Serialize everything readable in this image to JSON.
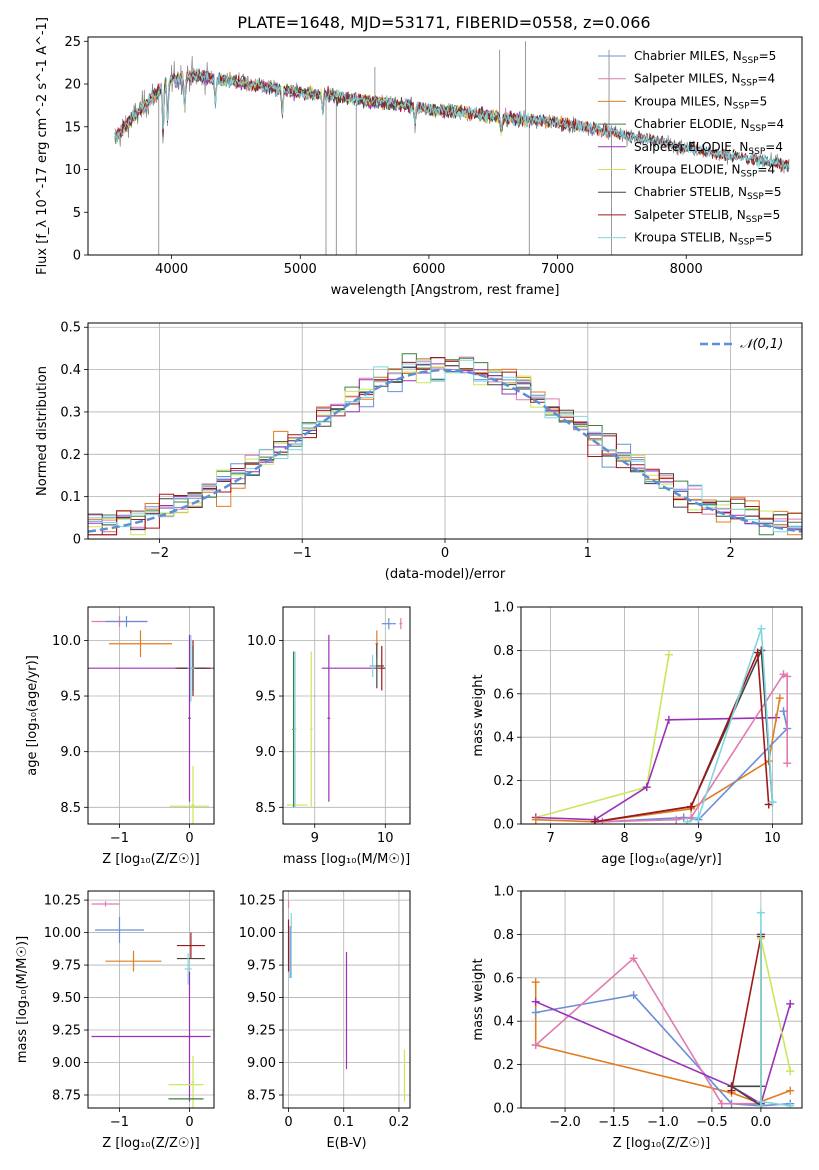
{
  "figure_title": "PLATE=1648, MJD=53171, FIBERID=0558, z=0.066",
  "chart_data": [
    {
      "id": "spectrum",
      "type": "line",
      "title": "PLATE=1648, MJD=53171, FIBERID=0558, z=0.066",
      "xlabel": "wavelength [Angstrom, rest frame]",
      "ylabel": "Flux [f_λ 10^-17 erg cm^-2 s^-1 A^-1]",
      "xlim": [
        3350,
        8900
      ],
      "ylim": [
        0,
        25.5
      ],
      "xticks": [
        4000,
        5000,
        6000,
        7000,
        8000
      ],
      "yticks": [
        0,
        5,
        10,
        15,
        20,
        25
      ],
      "grid": false,
      "legend_position": "top-right",
      "continuum_x": [
        3550,
        3700,
        3850,
        3950,
        4000,
        4100,
        4200,
        4400,
        4600,
        4800,
        5000,
        5200,
        5400,
        5600,
        5800,
        6000,
        6200,
        6400,
        6600,
        6800,
        7000,
        7200,
        7400,
        7600,
        7800,
        8000,
        8200,
        8400,
        8600,
        8800
      ],
      "continuum_y": [
        13.5,
        16.0,
        18.5,
        20.0,
        20.5,
        20.8,
        21.0,
        20.5,
        20.0,
        19.5,
        19.0,
        18.7,
        18.3,
        17.9,
        17.5,
        17.1,
        16.8,
        16.4,
        16.0,
        15.8,
        15.5,
        15.0,
        14.5,
        13.8,
        13.2,
        12.6,
        12.0,
        11.5,
        11.0,
        10.6
      ],
      "series": [
        {
          "name": "Chabrier MILES",
          "nssp": "5",
          "color": "#6a8fd8",
          "xmax": 7450
        },
        {
          "name": "Salpeter MILES",
          "nssp": "4",
          "color": "#e07ab0",
          "xmax": 7450
        },
        {
          "name": "Kroupa MILES",
          "nssp": "5",
          "color": "#e07d22",
          "xmax": 7450
        },
        {
          "name": "Chabrier ELODIE",
          "nssp": "4",
          "color": "#3f7f3f",
          "xmax": 6800
        },
        {
          "name": "Salpeter ELODIE",
          "nssp": "4",
          "color": "#9b30b8",
          "xmax": 6800
        },
        {
          "name": "Kroupa ELODIE",
          "nssp": "4",
          "color": "#c7e85a",
          "xmax": 6800
        },
        {
          "name": "Chabrier STELIB",
          "nssp": "5",
          "color": "#444444",
          "xmax": 8800
        },
        {
          "name": "Salpeter STELIB",
          "nssp": "5",
          "color": "#a01818",
          "xmax": 8800
        },
        {
          "name": "Kroupa STELIB",
          "nssp": "5",
          "color": "#7fd6e0",
          "xmax": 8800
        }
      ],
      "data_color": "#808080"
    },
    {
      "id": "residuals",
      "type": "histogram",
      "xlabel": "(data-model)/error",
      "ylabel": "Normed distribution",
      "xlim": [
        -2.5,
        2.5
      ],
      "ylim": [
        0,
        0.51
      ],
      "xticks": [
        -2,
        -1,
        0,
        1,
        2
      ],
      "yticks": [
        0.0,
        0.1,
        0.2,
        0.3,
        0.4,
        0.5
      ],
      "grid": true,
      "bin_width": 0.1,
      "legend_position": "top-right",
      "reference_label": "𝒩(0,1)",
      "reference_color": "#5b8fd6"
    },
    {
      "id": "age_vs_Z",
      "type": "scatter",
      "xlabel": "Z [log₁₀(Z/Z☉)]",
      "ylabel": "age  [log₁₀(age/yr)]",
      "xlim": [
        -1.45,
        0.35
      ],
      "ylim": [
        8.35,
        10.3
      ],
      "xticks": [
        -1,
        0
      ],
      "yticks": [
        8.5,
        9.0,
        9.5,
        10.0
      ],
      "grid": true,
      "points": [
        {
          "x": -1.0,
          "y": 10.17,
          "xerr": 0.4,
          "yerr": 0.05,
          "color": "#e07ab0"
        },
        {
          "x": -0.9,
          "y": 10.17,
          "xerr": 0.3,
          "yerr": 0.05,
          "color": "#6a8fd8"
        },
        {
          "x": -0.7,
          "y": 9.97,
          "xerr": 0.45,
          "yerr": 0.12,
          "color": "#e07d22"
        },
        {
          "x": -0.9,
          "y": 9.75,
          "xerr": 1.4,
          "yerr": 0.0,
          "color": "#9b30b8"
        },
        {
          "x": 0.05,
          "y": 9.75,
          "xerr": 0.25,
          "yerr": 0.25,
          "color": "#a01818"
        },
        {
          "x": 0.05,
          "y": 9.75,
          "xerr": 0.2,
          "yerr": 0.2,
          "color": "#444444"
        },
        {
          "x": 0.02,
          "y": 9.75,
          "xerr": 0.05,
          "yerr": 0.3,
          "color": "#7fd6e0"
        },
        {
          "x": 0.0,
          "y": 9.3,
          "xerr": 0.02,
          "yerr": 0.75,
          "color": "#9b30b8"
        },
        {
          "x": 0.0,
          "y": 8.51,
          "xerr": 0.28,
          "yerr": 0.0,
          "color": "#c7e85a"
        },
        {
          "x": 0.05,
          "y": 8.52,
          "xerr": 0.02,
          "yerr": 0.35,
          "color": "#c7e85a"
        }
      ]
    },
    {
      "id": "age_vs_mass",
      "type": "scatter",
      "xlabel": "mass [log₁₀(M/M☉)]",
      "ylabel": "",
      "xlim": [
        8.55,
        10.35
      ],
      "ylim": [
        8.35,
        10.3
      ],
      "xticks": [
        9,
        10
      ],
      "yticks": [
        8.5,
        9.0,
        9.5,
        10.0
      ],
      "grid": true,
      "points": [
        {
          "x": 10.05,
          "y": 10.15,
          "xerr": 0.1,
          "yerr": 0.05,
          "color": "#6a8fd8"
        },
        {
          "x": 10.22,
          "y": 10.15,
          "xerr": 0.02,
          "yerr": 0.05,
          "color": "#e07ab0"
        },
        {
          "x": 9.88,
          "y": 9.97,
          "xerr": 0.02,
          "yerr": 0.12,
          "color": "#e07d22"
        },
        {
          "x": 9.5,
          "y": 9.75,
          "xerr": 0.4,
          "yerr": 0.0,
          "color": "#9b30b8"
        },
        {
          "x": 9.88,
          "y": 9.77,
          "xerr": 0.1,
          "yerr": 0.2,
          "color": "#444444"
        },
        {
          "x": 9.95,
          "y": 9.75,
          "xerr": 0.05,
          "yerr": 0.2,
          "color": "#a01818"
        },
        {
          "x": 9.82,
          "y": 9.77,
          "xerr": 0.05,
          "yerr": 0.1,
          "color": "#7fd6e0"
        },
        {
          "x": 9.2,
          "y": 9.3,
          "xerr": 0.02,
          "yerr": 0.75,
          "color": "#9b30b8"
        },
        {
          "x": 8.75,
          "y": 8.52,
          "xerr": 0.15,
          "yerr": 0.0,
          "color": "#c7e85a"
        },
        {
          "x": 8.7,
          "y": 9.2,
          "xerr": 0.02,
          "yerr": 0.7,
          "color": "#3f7f3f"
        },
        {
          "x": 8.72,
          "y": 9.2,
          "xerr": 0.02,
          "yerr": 0.7,
          "color": "#7fd6e0"
        },
        {
          "x": 8.95,
          "y": 9.2,
          "xerr": 0.02,
          "yerr": 0.7,
          "color": "#c7e85a"
        }
      ]
    },
    {
      "id": "massweight_vs_age",
      "type": "line",
      "xlabel": "age  [log₁₀(age/yr)]",
      "ylabel": "mass weight",
      "xlim": [
        6.6,
        10.4
      ],
      "ylim": [
        0,
        1.0
      ],
      "xticks": [
        7,
        8,
        9,
        10
      ],
      "yticks": [
        0.0,
        0.2,
        0.4,
        0.6,
        0.8,
        1.0
      ],
      "grid": true,
      "series": [
        {
          "color": "#c7e85a",
          "x": [
            6.8,
            8.3,
            8.6
          ],
          "y": [
            0.03,
            0.17,
            0.78
          ]
        },
        {
          "color": "#9b30b8",
          "x": [
            6.8,
            7.6,
            8.3,
            8.6,
            10.05
          ],
          "y": [
            0.03,
            0.02,
            0.17,
            0.48,
            0.49
          ]
        },
        {
          "color": "#e07d22",
          "x": [
            6.8,
            7.6,
            8.9,
            9.95,
            10.1
          ],
          "y": [
            0.02,
            0.01,
            0.07,
            0.29,
            0.58
          ]
        },
        {
          "color": "#6a8fd8",
          "x": [
            7.7,
            8.8,
            9.0,
            10.2,
            10.15
          ],
          "y": [
            0.01,
            0.03,
            0.02,
            0.44,
            0.52
          ]
        },
        {
          "color": "#e07ab0",
          "x": [
            7.7,
            8.7,
            8.9,
            10.15,
            10.2,
            10.2
          ],
          "y": [
            0.01,
            0.02,
            0.03,
            0.69,
            0.68,
            0.28
          ]
        },
        {
          "color": "#444444",
          "x": [
            7.6,
            8.9,
            9.85,
            10.0
          ],
          "y": [
            0.01,
            0.08,
            0.8,
            0.1
          ]
        },
        {
          "color": "#a01818",
          "x": [
            7.6,
            8.9,
            9.8,
            9.95
          ],
          "y": [
            0.01,
            0.08,
            0.79,
            0.09
          ]
        },
        {
          "color": "#7fd6e0",
          "x": [
            8.85,
            9.0,
            9.85,
            10.0
          ],
          "y": [
            0.01,
            0.03,
            0.9,
            0.1
          ]
        }
      ]
    },
    {
      "id": "mass_vs_Z",
      "type": "scatter",
      "xlabel": "Z [log₁₀(Z/Z☉)]",
      "ylabel": "mass [log₁₀(M/M☉)]",
      "xlim": [
        -1.45,
        0.35
      ],
      "ylim": [
        8.65,
        10.32
      ],
      "xticks": [
        -1,
        0
      ],
      "yticks": [
        8.75,
        9.0,
        9.25,
        9.5,
        9.75,
        10.0,
        10.25
      ],
      "grid": true,
      "points": [
        {
          "x": -1.2,
          "y": 10.22,
          "xerr": 0.2,
          "yerr": 0.02,
          "color": "#e07ab0"
        },
        {
          "x": -1.0,
          "y": 10.02,
          "xerr": 0.35,
          "yerr": 0.1,
          "color": "#6a8fd8"
        },
        {
          "x": -0.8,
          "y": 9.78,
          "xerr": 0.4,
          "yerr": 0.08,
          "color": "#e07d22"
        },
        {
          "x": 0.02,
          "y": 9.9,
          "xerr": 0.2,
          "yerr": 0.1,
          "color": "#a01818"
        },
        {
          "x": 0.02,
          "y": 9.8,
          "xerr": 0.2,
          "yerr": 0.0,
          "color": "#444444"
        },
        {
          "x": -0.02,
          "y": 9.72,
          "xerr": 0.05,
          "yerr": 0.12,
          "color": "#7fd6e0"
        },
        {
          "x": -0.55,
          "y": 9.2,
          "xerr": 0.85,
          "yerr": 0.0,
          "color": "#9b30b8"
        },
        {
          "x": 0.0,
          "y": 9.2,
          "xerr": 0.02,
          "yerr": 0.5,
          "color": "#9b30b8"
        },
        {
          "x": -0.05,
          "y": 8.83,
          "xerr": 0.25,
          "yerr": 0.0,
          "color": "#c7e85a"
        },
        {
          "x": 0.05,
          "y": 8.85,
          "xerr": 0.02,
          "yerr": 0.2,
          "color": "#c7e85a"
        },
        {
          "x": -0.05,
          "y": 8.72,
          "xerr": 0.25,
          "yerr": 0.0,
          "color": "#3f7f3f"
        }
      ]
    },
    {
      "id": "mass_vs_ebv",
      "type": "scatter",
      "xlabel": "E(B-V)",
      "ylabel": "",
      "xlim": [
        -0.01,
        0.22
      ],
      "ylim": [
        8.65,
        10.32
      ],
      "xticks": [
        0.0,
        0.1,
        0.2
      ],
      "yticks": [
        8.75,
        9.0,
        9.25,
        9.5,
        9.75,
        10.0,
        10.25
      ],
      "grid": true,
      "points": [
        {
          "x": 0.0,
          "y": 9.9,
          "xerr": 0.0,
          "yerr": 0.2,
          "color": "#a01818"
        },
        {
          "x": 0.003,
          "y": 9.85,
          "xerr": 0.0,
          "yerr": 0.2,
          "color": "#6a8fd8"
        },
        {
          "x": 0.005,
          "y": 9.9,
          "xerr": 0.0,
          "yerr": 0.25,
          "color": "#7fd6e0"
        },
        {
          "x": 0.0,
          "y": 10.22,
          "xerr": 0.0,
          "yerr": 0.03,
          "color": "#e07ab0"
        },
        {
          "x": 0.105,
          "y": 9.4,
          "xerr": 0.0,
          "yerr": 0.45,
          "color": "#9b30b8"
        },
        {
          "x": 0.21,
          "y": 8.9,
          "xerr": 0.0,
          "yerr": 0.2,
          "color": "#c7e85a"
        }
      ]
    },
    {
      "id": "massweight_vs_Z",
      "type": "line",
      "xlabel": "Z [log₁₀(Z/Z☉)]",
      "ylabel": "mass weight",
      "xlim": [
        -2.45,
        0.42
      ],
      "ylim": [
        0,
        1.0
      ],
      "xticks": [
        -2.0,
        -1.5,
        -1.0,
        -0.5,
        0.0
      ],
      "yticks": [
        0.0,
        0.2,
        0.4,
        0.6,
        0.8,
        1.0
      ],
      "grid": true,
      "series": [
        {
          "color": "#e07d22",
          "x": [
            -2.3,
            -2.3,
            -0.3,
            0.0,
            0.0,
            0.3
          ],
          "y": [
            0.58,
            0.29,
            0.07,
            0.02,
            0.03,
            0.08
          ]
        },
        {
          "color": "#6a8fd8",
          "x": [
            -2.3,
            -1.3,
            -0.3,
            0.0,
            0.3
          ],
          "y": [
            0.44,
            0.52,
            0.02,
            0.01,
            0.02
          ]
        },
        {
          "color": "#e07ab0",
          "x": [
            -2.3,
            -1.3,
            -0.4,
            0.0,
            0.0
          ],
          "y": [
            0.29,
            0.69,
            0.02,
            0.02,
            0.02
          ]
        },
        {
          "color": "#9b30b8",
          "x": [
            -2.3,
            -0.3,
            0.0,
            0.3
          ],
          "y": [
            0.49,
            0.1,
            0.02,
            0.48
          ]
        },
        {
          "color": "#444444",
          "x": [
            0.0,
            0.0,
            -0.3,
            0.0
          ],
          "y": [
            0.8,
            0.01,
            0.1,
            0.1
          ]
        },
        {
          "color": "#a01818",
          "x": [
            -0.3,
            0.0,
            0.0
          ],
          "y": [
            0.08,
            0.79,
            0.01
          ]
        },
        {
          "color": "#c7e85a",
          "x": [
            0.0,
            0.0,
            0.3,
            0.3
          ],
          "y": [
            0.03,
            0.78,
            0.17,
            0.17
          ]
        },
        {
          "color": "#7fd6e0",
          "x": [
            0.0,
            0.0,
            0.0,
            0.3
          ],
          "y": [
            0.01,
            0.9,
            0.03,
            0.01
          ]
        }
      ]
    }
  ]
}
